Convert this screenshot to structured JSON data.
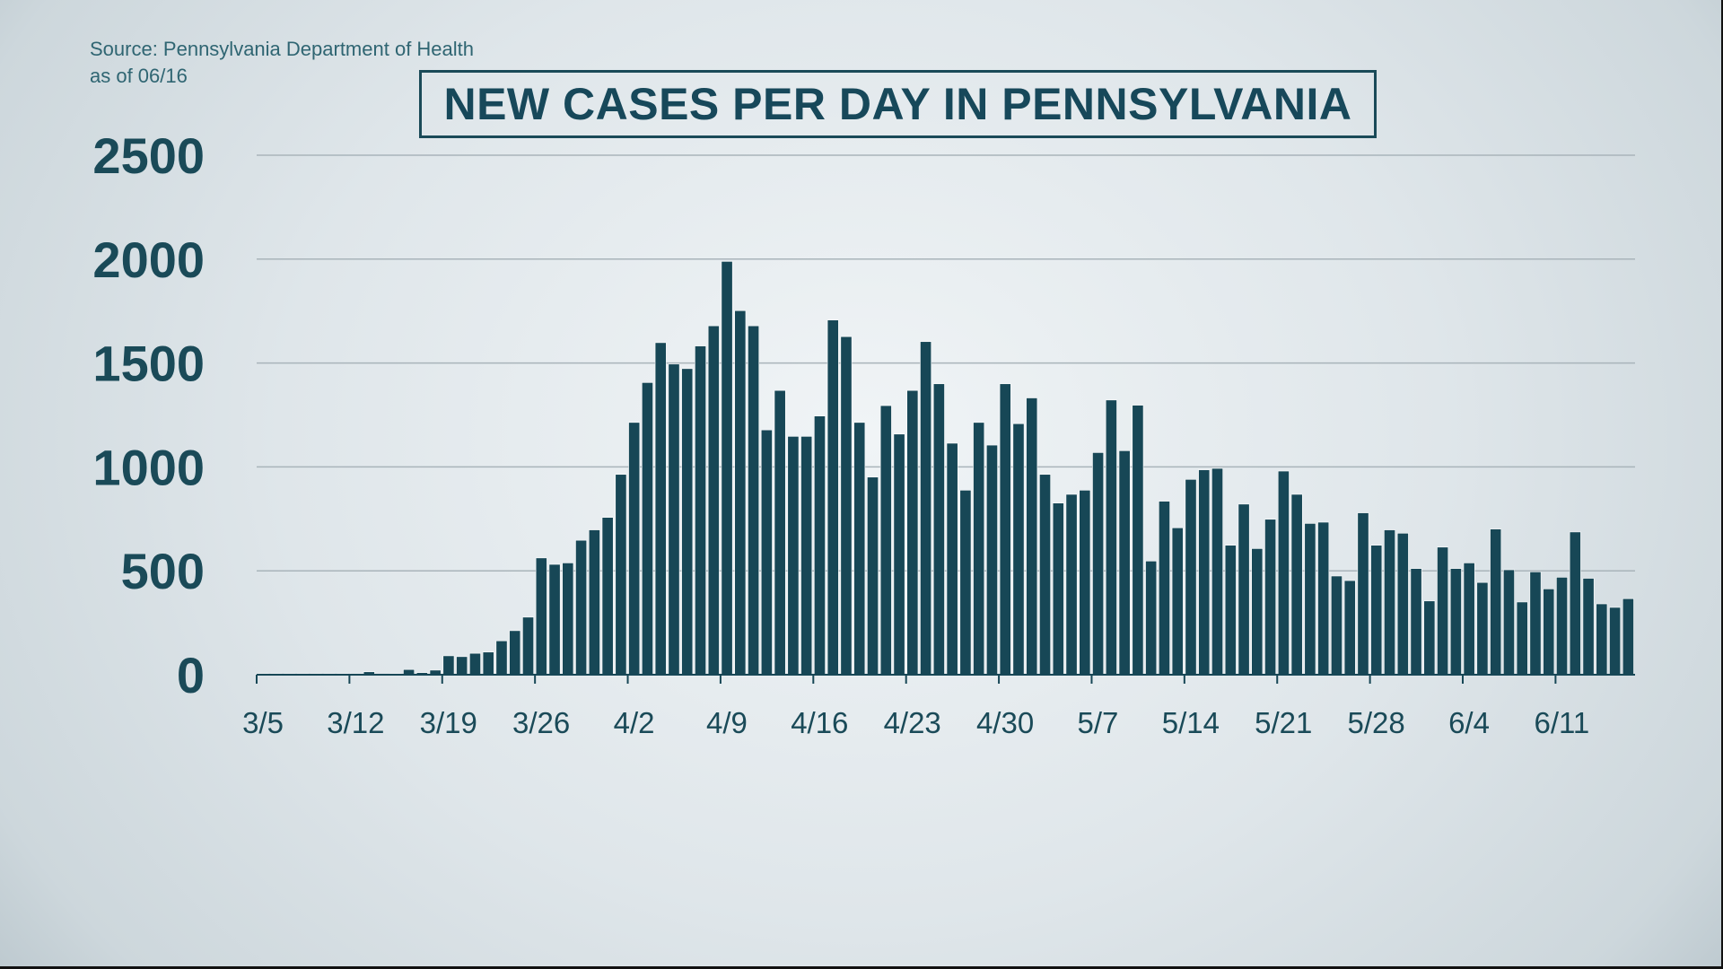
{
  "source_line1": "Source: Pennsylvania Department of Health",
  "source_line2": "as of 06/16",
  "colors": {
    "bar": "#174756",
    "text": "#1a4a58",
    "grid": "#a9b4ba"
  },
  "chart_data": {
    "type": "bar",
    "title": "NEW CASES PER DAY IN PENNSYLVANIA",
    "xlabel": "",
    "ylabel": "",
    "ylim": [
      0,
      2500
    ],
    "yticks": [
      "0",
      "500",
      "1000",
      "1500",
      "2000",
      "2500"
    ],
    "grid": true,
    "x_start": "3/5",
    "x_end": "6/16",
    "xtick_labels": [
      "3/5",
      "3/12",
      "3/19",
      "3/26",
      "4/2",
      "4/9",
      "4/16",
      "4/23",
      "4/30",
      "5/7",
      "5/14",
      "5/21",
      "5/28",
      "6/4",
      "6/11"
    ],
    "values": [
      2,
      1,
      2,
      2,
      4,
      2,
      2,
      6,
      14,
      0,
      4,
      25,
      10,
      22,
      91,
      87,
      103,
      109,
      163,
      212,
      277,
      562,
      531,
      538,
      647,
      697,
      757,
      964,
      1214,
      1406,
      1598,
      1495,
      1473,
      1582,
      1679,
      1989,
      1752,
      1679,
      1178,
      1368,
      1147,
      1147,
      1245,
      1707,
      1627,
      1214,
      951,
      1295,
      1158,
      1368,
      1603,
      1400,
      1114,
      888,
      1214,
      1105,
      1400,
      1208,
      1332,
      964,
      826,
      868,
      888,
      1069,
      1322,
      1078,
      1297,
      547,
      835,
      707,
      940,
      986,
      993,
      623,
      821,
      607,
      748,
      980,
      868,
      728,
      734,
      475,
      453,
      779,
      623,
      697,
      681,
      511,
      355,
      614,
      511,
      538,
      444,
      701,
      505,
      350,
      495,
      413,
      469,
      687,
      464,
      341,
      324,
      366
    ]
  }
}
